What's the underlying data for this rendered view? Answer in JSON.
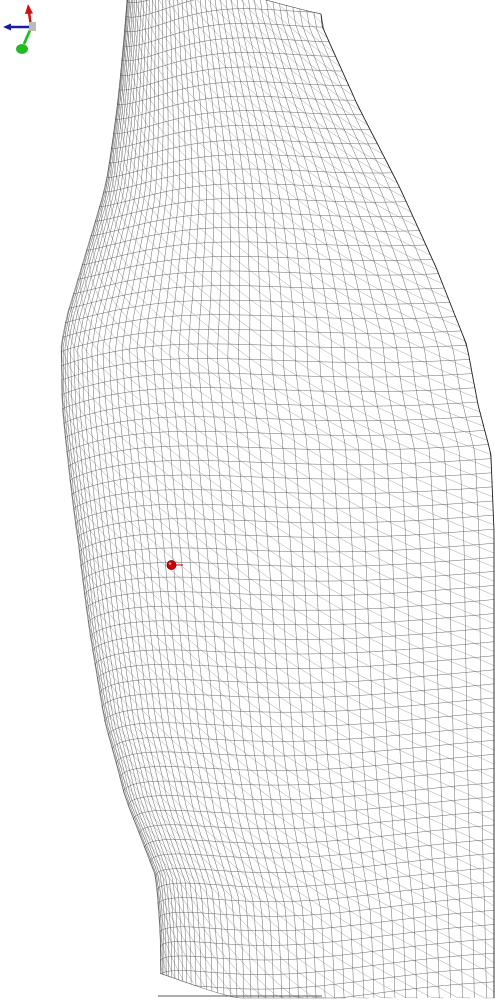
{
  "viewport": {
    "background": "#ffffff",
    "wire_color": "#3a3a3a",
    "outline_color": "#222222"
  },
  "mesh": {
    "style": "wireframe",
    "u_divisions": 46,
    "v_divisions": 70
  },
  "pick_marker": {
    "icon": "red-sphere-marker",
    "color": "#cc0000"
  },
  "axes_gizmo": {
    "icon": "orientation-axes-icon",
    "x_axis_color": "#cc1111",
    "y_axis_color": "#22bb22",
    "z_axis_color": "#1a1aa8",
    "origin_color": "#bbbbbb"
  }
}
